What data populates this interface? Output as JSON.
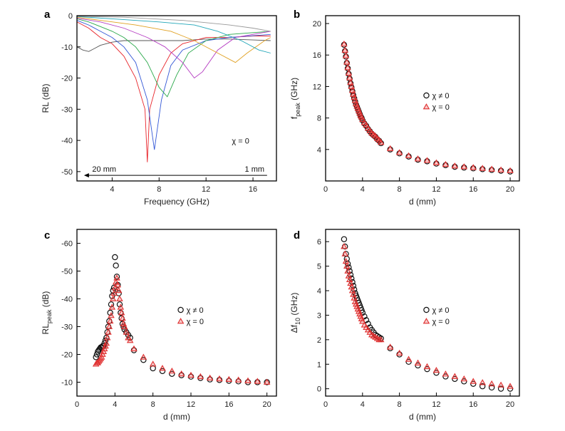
{
  "colors": {
    "open": "#111111",
    "filled": "#e03030",
    "axis": "#000000"
  },
  "chart_data": [
    {
      "panel": "a",
      "type": "line",
      "xlabel": "Frequency (GHz)",
      "ylabel": "RL (dB)",
      "xlim": [
        1,
        18
      ],
      "ylim": [
        -53,
        0
      ],
      "xticks": [
        4,
        8,
        12,
        16
      ],
      "yticks": [
        0,
        -10,
        -20,
        -30,
        -40,
        -50
      ],
      "annotation": "χ = 0",
      "arrow_left": "20 mm",
      "arrow_right": "1 mm",
      "series": [
        {
          "values": [
            [
              1,
              -10
            ],
            [
              1.5,
              -11
            ],
            [
              2,
              -11.5
            ],
            [
              2.5,
              -10.5
            ],
            [
              3,
              -9.5
            ],
            [
              4,
              -8.5
            ],
            [
              5,
              -8
            ],
            [
              6,
              -8
            ],
            [
              8,
              -8
            ],
            [
              10,
              -8
            ],
            [
              12,
              -7.5
            ],
            [
              14,
              -7.5
            ],
            [
              16,
              -7.8
            ],
            [
              17.5,
              -8
            ]
          ]
        },
        {
          "values": [
            [
              1,
              -2
            ],
            [
              2,
              -4
            ],
            [
              3,
              -7
            ],
            [
              4,
              -9
            ],
            [
              5,
              -13
            ],
            [
              6,
              -20
            ],
            [
              6.8,
              -30
            ],
            [
              7,
              -47
            ],
            [
              7.2,
              -30
            ],
            [
              8,
              -19
            ],
            [
              9,
              -12
            ],
            [
              10,
              -9
            ],
            [
              12,
              -7
            ],
            [
              14,
              -7
            ],
            [
              16,
              -6.5
            ],
            [
              17.5,
              -6.5
            ]
          ]
        },
        {
          "values": [
            [
              1,
              -1.5
            ],
            [
              2,
              -3
            ],
            [
              3,
              -5
            ],
            [
              4,
              -7
            ],
            [
              5,
              -10
            ],
            [
              6,
              -15
            ],
            [
              7,
              -27
            ],
            [
              7.6,
              -43
            ],
            [
              8.2,
              -27
            ],
            [
              9,
              -16
            ],
            [
              10,
              -11
            ],
            [
              12,
              -8
            ],
            [
              14,
              -7
            ],
            [
              17.5,
              -6
            ]
          ]
        },
        {
          "values": [
            [
              1,
              -1
            ],
            [
              2,
              -2
            ],
            [
              3,
              -3.5
            ],
            [
              4,
              -5
            ],
            [
              5,
              -7
            ],
            [
              6,
              -10
            ],
            [
              7,
              -15
            ],
            [
              8,
              -23
            ],
            [
              8.7,
              -26
            ],
            [
              9.5,
              -19
            ],
            [
              10.5,
              -12
            ],
            [
              12,
              -8
            ],
            [
              14,
              -6
            ],
            [
              17.5,
              -5
            ]
          ]
        },
        {
          "values": [
            [
              1,
              -0.8
            ],
            [
              3,
              -2
            ],
            [
              5,
              -4
            ],
            [
              7,
              -7
            ],
            [
              8.5,
              -10
            ],
            [
              10,
              -15
            ],
            [
              11,
              -20
            ],
            [
              11.7,
              -18
            ],
            [
              13,
              -11
            ],
            [
              14.5,
              -7
            ],
            [
              17.5,
              -5
            ]
          ]
        },
        {
          "values": [
            [
              1,
              -0.5
            ],
            [
              3,
              -1.5
            ],
            [
              6,
              -3
            ],
            [
              9,
              -5
            ],
            [
              11,
              -8
            ],
            [
              13,
              -12
            ],
            [
              14.5,
              -15
            ],
            [
              15.5,
              -12
            ],
            [
              17,
              -8
            ],
            [
              17.5,
              -7
            ]
          ]
        },
        {
          "values": [
            [
              1,
              -0.3
            ],
            [
              4,
              -1
            ],
            [
              8,
              -2
            ],
            [
              11,
              -3
            ],
            [
              13,
              -5
            ],
            [
              15,
              -8
            ],
            [
              16.5,
              -11
            ],
            [
              17.5,
              -12
            ]
          ]
        },
        {
          "values": [
            [
              1,
              -0.2
            ],
            [
              5,
              -0.5
            ],
            [
              10,
              -1.5
            ],
            [
              14,
              -3
            ],
            [
              16,
              -4
            ],
            [
              17.5,
              -5
            ]
          ]
        }
      ]
    },
    {
      "panel": "b",
      "type": "scatter",
      "xlabel": "d (mm)",
      "ylabel": "f",
      "ylabel_sub": "peak",
      "ylabel_tail": " (GHz)",
      "xlim": [
        0,
        21
      ],
      "ylim": [
        0,
        21
      ],
      "xticks": [
        0,
        4,
        8,
        12,
        16,
        20
      ],
      "yticks": [
        4,
        8,
        12,
        16,
        20
      ],
      "series": [
        {
          "name": "χ ≠ 0",
          "marker": "circle",
          "x": [
            2.0,
            2.1,
            2.2,
            2.3,
            2.4,
            2.5,
            2.6,
            2.7,
            2.8,
            2.9,
            3.0,
            3.1,
            3.2,
            3.3,
            3.4,
            3.5,
            3.6,
            3.7,
            3.8,
            3.9,
            4.0,
            4.2,
            4.4,
            4.6,
            4.8,
            5.0,
            5.2,
            5.4,
            5.6,
            5.8,
            6,
            7,
            8,
            9,
            10,
            11,
            12,
            13,
            14,
            15,
            16,
            17,
            18,
            19,
            20
          ],
          "y": [
            17.3,
            16.5,
            15.8,
            15.0,
            14.3,
            13.6,
            13.0,
            12.4,
            11.9,
            11.4,
            10.9,
            10.5,
            10.1,
            9.7,
            9.4,
            9.1,
            8.8,
            8.5,
            8.2,
            8.0,
            7.7,
            7.3,
            7.0,
            6.6,
            6.3,
            6.0,
            5.8,
            5.6,
            5.3,
            5.1,
            4.8,
            4.0,
            3.5,
            3.1,
            2.7,
            2.5,
            2.2,
            2.0,
            1.8,
            1.7,
            1.6,
            1.5,
            1.4,
            1.3,
            1.2
          ]
        },
        {
          "name": "χ = 0",
          "marker": "triangle",
          "x": [
            2.0,
            2.1,
            2.2,
            2.3,
            2.4,
            2.5,
            2.6,
            2.7,
            2.8,
            2.9,
            3.0,
            3.1,
            3.2,
            3.3,
            3.4,
            3.5,
            3.6,
            3.7,
            3.8,
            3.9,
            4.0,
            4.2,
            4.4,
            4.6,
            4.8,
            5.0,
            5.2,
            5.4,
            5.6,
            5.8,
            6,
            7,
            8,
            9,
            10,
            11,
            12,
            13,
            14,
            15,
            16,
            17,
            18,
            19,
            20
          ],
          "y": [
            17.4,
            16.6,
            15.9,
            15.1,
            14.4,
            13.7,
            13.1,
            12.5,
            12.0,
            11.5,
            11.0,
            10.6,
            10.2,
            9.8,
            9.5,
            9.2,
            8.9,
            8.6,
            8.3,
            8.1,
            7.8,
            7.4,
            7.1,
            6.7,
            6.4,
            6.1,
            5.9,
            5.7,
            5.4,
            5.2,
            4.9,
            4.1,
            3.6,
            3.2,
            2.8,
            2.6,
            2.3,
            2.1,
            1.9,
            1.8,
            1.7,
            1.6,
            1.5,
            1.4,
            1.3
          ]
        }
      ],
      "legend": "right-middle"
    },
    {
      "panel": "c",
      "type": "scatter",
      "xlabel": "d (mm)",
      "ylabel": "RL",
      "ylabel_sub": "peak",
      "ylabel_tail": " (dB)",
      "xlim": [
        0,
        21
      ],
      "ylim": [
        -5,
        -65
      ],
      "xticks": [
        0,
        4,
        8,
        12,
        16,
        20
      ],
      "yticks": [
        -10,
        -20,
        -30,
        -40,
        -50,
        -60
      ],
      "series": [
        {
          "name": "χ ≠ 0",
          "marker": "circle",
          "x": [
            2.0,
            2.1,
            2.2,
            2.3,
            2.4,
            2.5,
            2.6,
            2.7,
            2.8,
            2.9,
            3.0,
            3.1,
            3.2,
            3.3,
            3.4,
            3.5,
            3.6,
            3.7,
            3.8,
            3.9,
            4.0,
            4.1,
            4.2,
            4.3,
            4.4,
            4.5,
            4.6,
            4.7,
            4.8,
            4.9,
            5.0,
            5.2,
            5.4,
            5.6,
            6,
            7,
            8,
            9,
            10,
            11,
            12,
            13,
            14,
            15,
            16,
            17,
            18,
            19,
            20
          ],
          "y": [
            -19,
            -20,
            -21,
            -21.5,
            -22,
            -22.5,
            -22.5,
            -23,
            -23,
            -24,
            -25,
            -26,
            -28,
            -30,
            -32,
            -35,
            -38,
            -41,
            -43,
            -44,
            -55,
            -52,
            -48,
            -45,
            -42,
            -38,
            -35,
            -33,
            -31,
            -30,
            -29,
            -28,
            -27,
            -26,
            -21.5,
            -18,
            -15,
            -14,
            -13,
            -12.5,
            -12,
            -11.5,
            -11,
            -10.8,
            -10.5,
            -10.3,
            -10,
            -10,
            -10
          ]
        },
        {
          "name": "χ = 0",
          "marker": "triangle",
          "x": [
            2.0,
            2.1,
            2.2,
            2.3,
            2.4,
            2.5,
            2.6,
            2.7,
            2.8,
            2.9,
            3.0,
            3.1,
            3.2,
            3.3,
            3.4,
            3.5,
            3.6,
            3.7,
            3.8,
            3.9,
            4.0,
            4.1,
            4.2,
            4.3,
            4.4,
            4.5,
            4.6,
            4.7,
            4.8,
            4.9,
            5.0,
            5.2,
            5.4,
            5.6,
            6,
            7,
            8,
            9,
            10,
            11,
            12,
            13,
            14,
            15,
            16,
            17,
            18,
            19,
            20
          ],
          "y": [
            -16.5,
            -17,
            -17,
            -17.5,
            -18,
            -18.5,
            -19,
            -20,
            -21,
            -22,
            -23,
            -24,
            -26,
            -28,
            -30,
            -32,
            -34,
            -37,
            -40,
            -42,
            -44,
            -46,
            -47.5,
            -45,
            -43,
            -40,
            -37,
            -35,
            -33,
            -31,
            -30,
            -28,
            -26,
            -25,
            -22,
            -19,
            -16.5,
            -15,
            -14,
            -13,
            -12.5,
            -12,
            -11.5,
            -11.2,
            -11,
            -10.8,
            -10.5,
            -10.3,
            -10
          ]
        }
      ],
      "legend": "right-middle"
    },
    {
      "panel": "d",
      "type": "scatter",
      "xlabel": "d (mm)",
      "ylabel": "Δf",
      "ylabel_sub": "10",
      "ylabel_tail": " (GHz)",
      "xlim": [
        0,
        21
      ],
      "ylim": [
        -0.3,
        6.5
      ],
      "xticks": [
        0,
        4,
        8,
        12,
        16,
        20
      ],
      "yticks": [
        0,
        1,
        2,
        3,
        4,
        5,
        6
      ],
      "series": [
        {
          "name": "χ ≠ 0",
          "marker": "circle",
          "x": [
            2.0,
            2.1,
            2.2,
            2.3,
            2.4,
            2.5,
            2.6,
            2.7,
            2.8,
            2.9,
            3.0,
            3.1,
            3.2,
            3.3,
            3.4,
            3.5,
            3.6,
            3.7,
            3.8,
            3.9,
            4.0,
            4.2,
            4.4,
            4.6,
            4.8,
            5.0,
            5.2,
            5.4,
            5.6,
            5.8,
            6,
            7,
            8,
            9,
            10,
            11,
            12,
            13,
            14,
            15,
            16,
            17,
            18,
            19,
            20
          ],
          "y": [
            6.1,
            5.8,
            5.5,
            5.3,
            5.1,
            4.95,
            4.8,
            4.65,
            4.5,
            4.35,
            4.2,
            4.05,
            3.9,
            3.8,
            3.7,
            3.6,
            3.5,
            3.4,
            3.3,
            3.2,
            3.1,
            2.95,
            2.8,
            2.65,
            2.5,
            2.4,
            2.3,
            2.2,
            2.15,
            2.1,
            2.05,
            1.65,
            1.4,
            1.1,
            0.95,
            0.8,
            0.65,
            0.5,
            0.4,
            0.3,
            0.2,
            0.1,
            0.05,
            0.0,
            0.0
          ]
        },
        {
          "name": "χ = 0",
          "marker": "triangle",
          "x": [
            2.0,
            2.1,
            2.2,
            2.3,
            2.4,
            2.5,
            2.6,
            2.7,
            2.8,
            2.9,
            3.0,
            3.1,
            3.2,
            3.3,
            3.4,
            3.5,
            3.6,
            3.7,
            3.8,
            3.9,
            4.0,
            4.2,
            4.4,
            4.6,
            4.8,
            5.0,
            5.2,
            5.4,
            5.6,
            5.8,
            6,
            7,
            8,
            9,
            10,
            11,
            12,
            13,
            14,
            15,
            16,
            17,
            18,
            19,
            20
          ],
          "y": [
            5.8,
            5.5,
            5.2,
            5.0,
            4.8,
            4.6,
            4.45,
            4.3,
            4.15,
            4.0,
            3.85,
            3.7,
            3.55,
            3.45,
            3.35,
            3.25,
            3.15,
            3.05,
            2.95,
            2.85,
            2.75,
            2.6,
            2.5,
            2.4,
            2.3,
            2.2,
            2.15,
            2.1,
            2.05,
            2.0,
            2.0,
            1.7,
            1.45,
            1.2,
            1.05,
            0.9,
            0.75,
            0.6,
            0.5,
            0.4,
            0.3,
            0.25,
            0.2,
            0.15,
            0.1
          ]
        }
      ],
      "legend": "right-middle"
    }
  ]
}
